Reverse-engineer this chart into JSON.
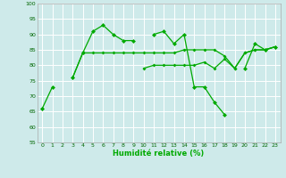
{
  "xlabel": "Humidité relative (%)",
  "xlim": [
    -0.5,
    23.5
  ],
  "ylim": [
    55,
    100
  ],
  "yticks": [
    55,
    60,
    65,
    70,
    75,
    80,
    85,
    90,
    95,
    100
  ],
  "xticks": [
    0,
    1,
    2,
    3,
    4,
    5,
    6,
    7,
    8,
    9,
    10,
    11,
    12,
    13,
    14,
    15,
    16,
    17,
    18,
    19,
    20,
    21,
    22,
    23
  ],
  "background_color": "#ceeaea",
  "grid_color": "#ffffff",
  "line_color": "#00aa00",
  "line1": [
    66,
    73,
    null,
    76,
    84,
    91,
    93,
    90,
    88,
    88,
    null,
    90,
    91,
    87,
    90,
    73,
    73,
    68,
    64,
    null,
    79,
    87,
    85,
    86
  ],
  "line2": [
    66,
    null,
    null,
    76,
    84,
    null,
    null,
    null,
    null,
    null,
    null,
    null,
    null,
    null,
    null,
    null,
    null,
    null,
    null,
    null,
    null,
    null,
    null,
    null
  ],
  "line3": [
    66,
    null,
    null,
    76,
    84,
    84,
    84,
    84,
    84,
    84,
    84,
    84,
    84,
    84,
    85,
    85,
    85,
    85,
    83,
    79,
    84,
    85,
    85,
    86
  ],
  "line4": [
    66,
    null,
    null,
    76,
    null,
    null,
    null,
    null,
    null,
    null,
    79,
    80,
    80,
    80,
    80,
    80,
    81,
    79,
    82,
    79,
    84,
    85,
    85,
    86
  ],
  "figsize": [
    3.2,
    2.0
  ],
  "dpi": 100
}
